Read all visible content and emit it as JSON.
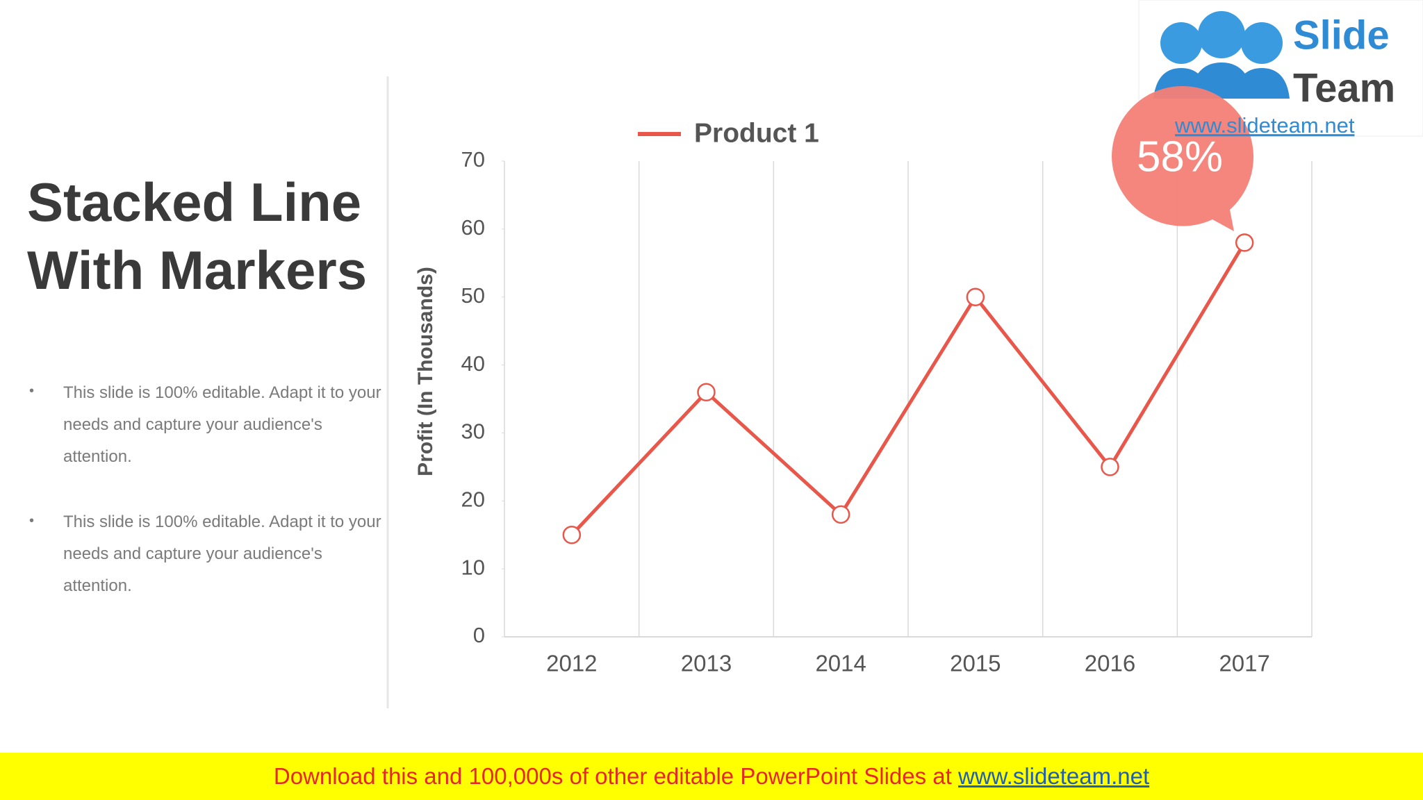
{
  "slide": {
    "title_lines": [
      "Stacked Line",
      "With Markers"
    ],
    "bullets": [
      "This slide is 100% editable. Adapt it to your needs and capture your audience's attention.",
      "This slide is 100% editable. Adapt it to your needs and capture your audience's attention."
    ]
  },
  "chart_data": {
    "type": "line",
    "categories": [
      "2012",
      "2013",
      "2014",
      "2015",
      "2016",
      "2017"
    ],
    "series": [
      {
        "name": "Product 1",
        "color": "#e8574a",
        "values": [
          15,
          36,
          18,
          50,
          25,
          58
        ]
      }
    ],
    "ylabel": "Profit (In Thousands)",
    "ylim": [
      0,
      70
    ],
    "yticks": [
      0,
      10,
      20,
      30,
      40,
      50,
      60,
      70
    ],
    "grid": "x",
    "legend": "top",
    "annotation": "58%"
  },
  "logo": {
    "name_top": "Slide",
    "name_bottom": "Team",
    "url": "www.slideteam.net"
  },
  "footer": {
    "text": "Download this and 100,000s of other editable PowerPoint Slides at",
    "link": "www.slideteam.net"
  }
}
